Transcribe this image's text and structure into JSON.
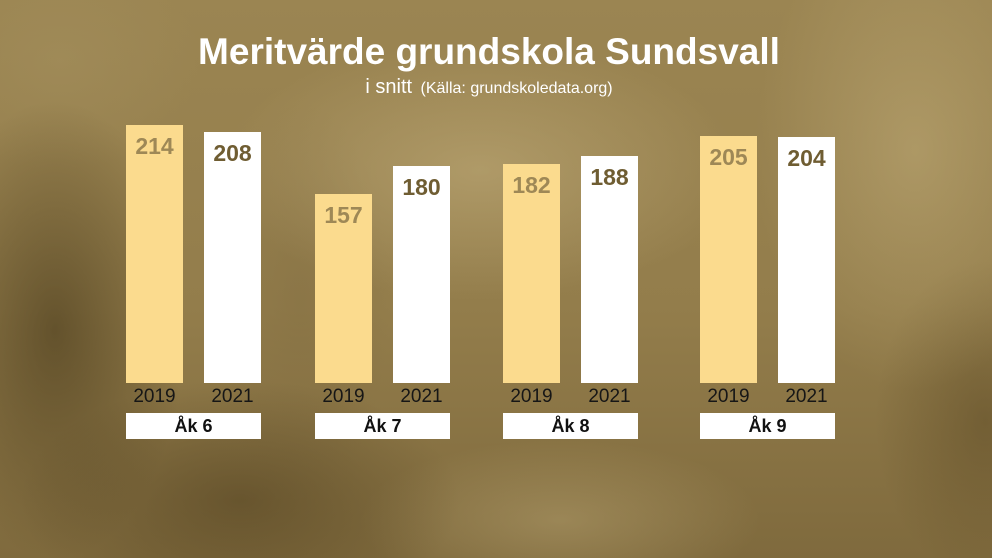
{
  "chart_data": {
    "type": "bar",
    "title": "Meritvärde grundskola Sundsvall",
    "subtitle": "i snitt",
    "source": "(Källa: grundskoledata.org)",
    "categories": [
      "Åk 6",
      "Åk 7",
      "Åk 8",
      "Åk 9"
    ],
    "series": [
      {
        "name": "2019",
        "color": "#fbdb8e",
        "label_color": "#9e8856",
        "values": [
          214,
          157,
          182,
          205
        ]
      },
      {
        "name": "2021",
        "color": "#ffffff",
        "label_color": "#6f5d32",
        "values": [
          208,
          180,
          188,
          204
        ]
      }
    ],
    "grid": false,
    "data_labels": true
  }
}
